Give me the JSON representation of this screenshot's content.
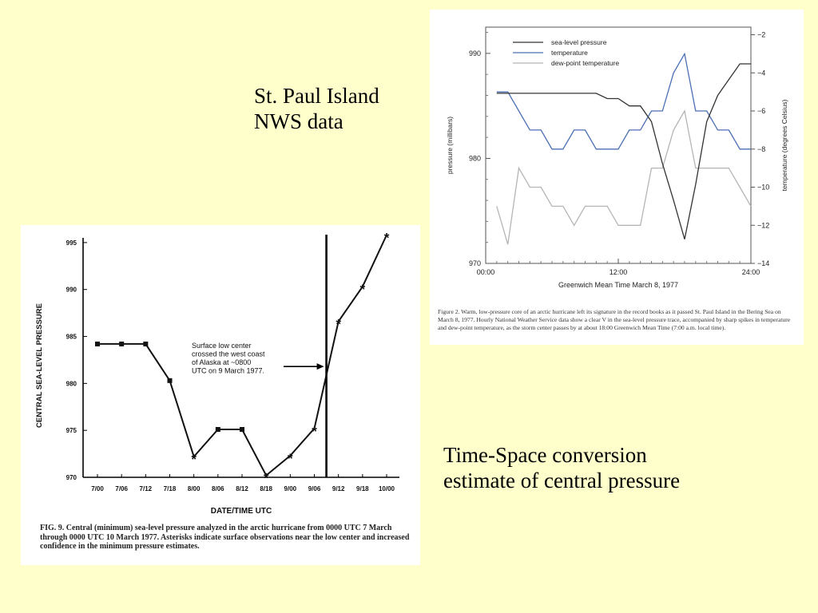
{
  "slide": {
    "title_line1": "St. Paul Island",
    "title_line2": "NWS data",
    "caption_line1": "Time-Space conversion",
    "caption_line2": "estimate of central pressure"
  },
  "fig_top": {
    "caption": "Figure 2. Warm, low-pressure core of an arctic hurricane left its signature in the record books as it passed St. Paul Island in the Bering Sea on March 8, 1977. Hourly National Weather Service data show a clear V in the sea-level pressure trace, accompanied by sharp spikes in temperature and dew-point temperature, as the storm center passes by at about 18:00 Greenwich Mean Time (7:00 a.m. local time)."
  },
  "fig_bottom": {
    "caption": "FIG. 9. Central (minimum) sea-level pressure analyzed in the arctic hurricane from 0000 UTC 7 March through 0000 UTC 10 March 1977. Asterisks indicate surface observations near the low center and increased confidence in the minimum pressure estimates."
  },
  "chart_data": [
    {
      "type": "line",
      "xlabel": "Greenwich Mean Time March 8, 1977",
      "ylabel": "pressure (millibars)",
      "y2label": "temperature (degrees Celsius)",
      "x_ticks": [
        "00:00",
        "12:00",
        "24:00"
      ],
      "xlim": [
        0,
        24
      ],
      "ylim": [
        970,
        992.5
      ],
      "y_ticks": [
        970,
        980,
        990
      ],
      "y2lim": [
        -14,
        -1.6
      ],
      "y2_ticks": [
        -14,
        -12,
        -10,
        -8,
        -6,
        -4,
        -2
      ],
      "grid": false,
      "legend_position": "top-left",
      "series": [
        {
          "name": "sea-level pressure",
          "axis": "left",
          "color": "#333333",
          "x": [
            1,
            2,
            3,
            4,
            5,
            6,
            7,
            8,
            9,
            10,
            11,
            12,
            13,
            14,
            15,
            16,
            17,
            18,
            19,
            20,
            21,
            22,
            23,
            24
          ],
          "y": [
            986.2,
            986.2,
            986.2,
            986.2,
            986.2,
            986.2,
            986.2,
            986.2,
            986.2,
            986.2,
            985.7,
            985.7,
            985.0,
            985.0,
            983.5,
            979.5,
            976.0,
            972.3,
            977.5,
            983.5,
            986.0,
            987.5,
            989.0,
            989.0
          ]
        },
        {
          "name": "temperature",
          "axis": "right",
          "color": "#4a6fb5",
          "x": [
            1,
            2,
            3,
            4,
            5,
            6,
            7,
            8,
            9,
            10,
            11,
            12,
            13,
            14,
            15,
            16,
            17,
            18,
            19,
            20,
            21,
            22,
            23,
            24
          ],
          "y": [
            -5,
            -5,
            -6,
            -7,
            -7,
            -8,
            -8,
            -7,
            -7,
            -8,
            -8,
            -8,
            -7,
            -7,
            -6,
            -6,
            -4,
            -3,
            -6,
            -6,
            -7,
            -7,
            -8,
            -8
          ]
        },
        {
          "name": "dew-point temperature",
          "axis": "right",
          "color": "#b5b5b5",
          "x": [
            1,
            2,
            3,
            4,
            5,
            6,
            7,
            8,
            9,
            10,
            11,
            12,
            13,
            14,
            15,
            16,
            17,
            18,
            19,
            20,
            21,
            22,
            23,
            24
          ],
          "y": [
            -11,
            -13,
            -9,
            -10,
            -10,
            -11,
            -11,
            -12,
            -11,
            -11,
            -11,
            -12,
            -12,
            -12,
            -9,
            -9,
            -7,
            -6,
            -9,
            -9,
            -9,
            -9,
            -10,
            -11
          ]
        }
      ]
    },
    {
      "type": "line",
      "xlabel": "DATE/TIME UTC",
      "ylabel": "CENTRAL SEA-LEVEL PRESSURE",
      "categories": [
        "7/00",
        "7/06",
        "7/12",
        "7/18",
        "8/00",
        "8/06",
        "8/12",
        "8/18",
        "9/00",
        "9/06",
        "9/12",
        "9/18",
        "10/00"
      ],
      "ylim": [
        970,
        995.5
      ],
      "y_ticks": [
        970,
        975,
        980,
        985,
        990,
        995
      ],
      "grid": false,
      "series": [
        {
          "x": [
            0,
            1,
            2,
            3,
            4,
            5,
            6,
            7,
            8,
            9,
            10,
            11,
            12
          ],
          "values": [
            984.2,
            984.2,
            984.2,
            980.3,
            972.2,
            975.1,
            975.1,
            970.2,
            972.3,
            975.2,
            986.6,
            990.3,
            995.8
          ],
          "markers": [
            "square",
            "square",
            "square",
            "square",
            "asterisk",
            "square",
            "square",
            "asterisk",
            "asterisk",
            "asterisk",
            "asterisk",
            "asterisk",
            "asterisk"
          ]
        }
      ],
      "vertical_line_x": 9.5,
      "annotation": {
        "text_lines": [
          "Surface low center",
          "crossed the west coast",
          "of Alaska at ~0800",
          "UTC on 9 March 1977."
        ],
        "arrow_to_x": 9.5,
        "arrow_y": 981.8
      }
    }
  ]
}
